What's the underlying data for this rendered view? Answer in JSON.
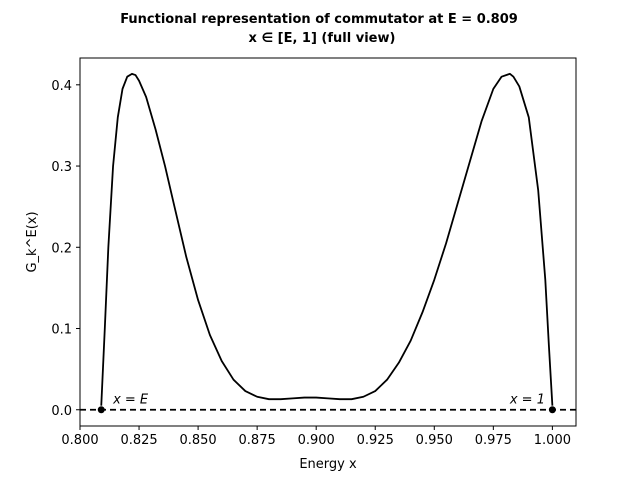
{
  "chart_data": {
    "type": "line",
    "title_line1": "Functional representation of commutator at E = 0.809",
    "title_line2": "x ∈ [E, 1] (full view)",
    "xlabel": "Energy x",
    "ylabel": "G_k^E(x)",
    "xlim": [
      0.8,
      1.01
    ],
    "ylim": [
      -0.02,
      0.433
    ],
    "xticks": [
      0.8,
      0.825,
      0.85,
      0.875,
      0.9,
      0.925,
      0.95,
      0.975,
      1.0
    ],
    "xtick_labels": [
      "0.800",
      "0.825",
      "0.850",
      "0.875",
      "0.900",
      "0.925",
      "0.950",
      "0.975",
      "1.000"
    ],
    "yticks": [
      0.0,
      0.1,
      0.2,
      0.3,
      0.4
    ],
    "ytick_labels": [
      "0.0",
      "0.1",
      "0.2",
      "0.3",
      "0.4"
    ],
    "grid": false,
    "series": [
      {
        "color": "#000000",
        "style": "solid",
        "x": [
          0.809,
          0.8105,
          0.812,
          0.814,
          0.816,
          0.818,
          0.82,
          0.822,
          0.8235,
          0.825,
          0.828,
          0.832,
          0.836,
          0.84,
          0.845,
          0.85,
          0.855,
          0.86,
          0.865,
          0.87,
          0.875,
          0.88,
          0.885,
          0.89,
          0.895,
          0.9,
          0.905,
          0.91,
          0.915,
          0.92,
          0.925,
          0.93,
          0.935,
          0.94,
          0.945,
          0.95,
          0.955,
          0.96,
          0.965,
          0.97,
          0.975,
          0.9785,
          0.982,
          0.9835,
          0.986,
          0.99,
          0.994,
          0.997,
          0.9985,
          1.0
        ],
        "y": [
          0.005,
          0.1,
          0.2,
          0.3,
          0.36,
          0.395,
          0.41,
          0.4135,
          0.412,
          0.405,
          0.385,
          0.345,
          0.3,
          0.25,
          0.188,
          0.135,
          0.092,
          0.06,
          0.037,
          0.023,
          0.016,
          0.013,
          0.013,
          0.014,
          0.015,
          0.015,
          0.014,
          0.013,
          0.013,
          0.016,
          0.023,
          0.037,
          0.058,
          0.085,
          0.12,
          0.16,
          0.205,
          0.255,
          0.305,
          0.355,
          0.395,
          0.41,
          0.4135,
          0.41,
          0.398,
          0.36,
          0.27,
          0.16,
          0.08,
          0.005
        ]
      },
      {
        "color": "#000000",
        "style": "dashed",
        "x": [
          0.8,
          1.01
        ],
        "y": [
          0.0,
          0.0
        ]
      }
    ],
    "points": [
      {
        "x": 0.809,
        "y": 0.0
      },
      {
        "x": 1.0,
        "y": 0.0
      }
    ],
    "annotations": [
      {
        "text": "x = E",
        "x": 0.814,
        "y": 0.003
      },
      {
        "text": "x = 1",
        "x": 0.982,
        "y": 0.003
      }
    ]
  }
}
